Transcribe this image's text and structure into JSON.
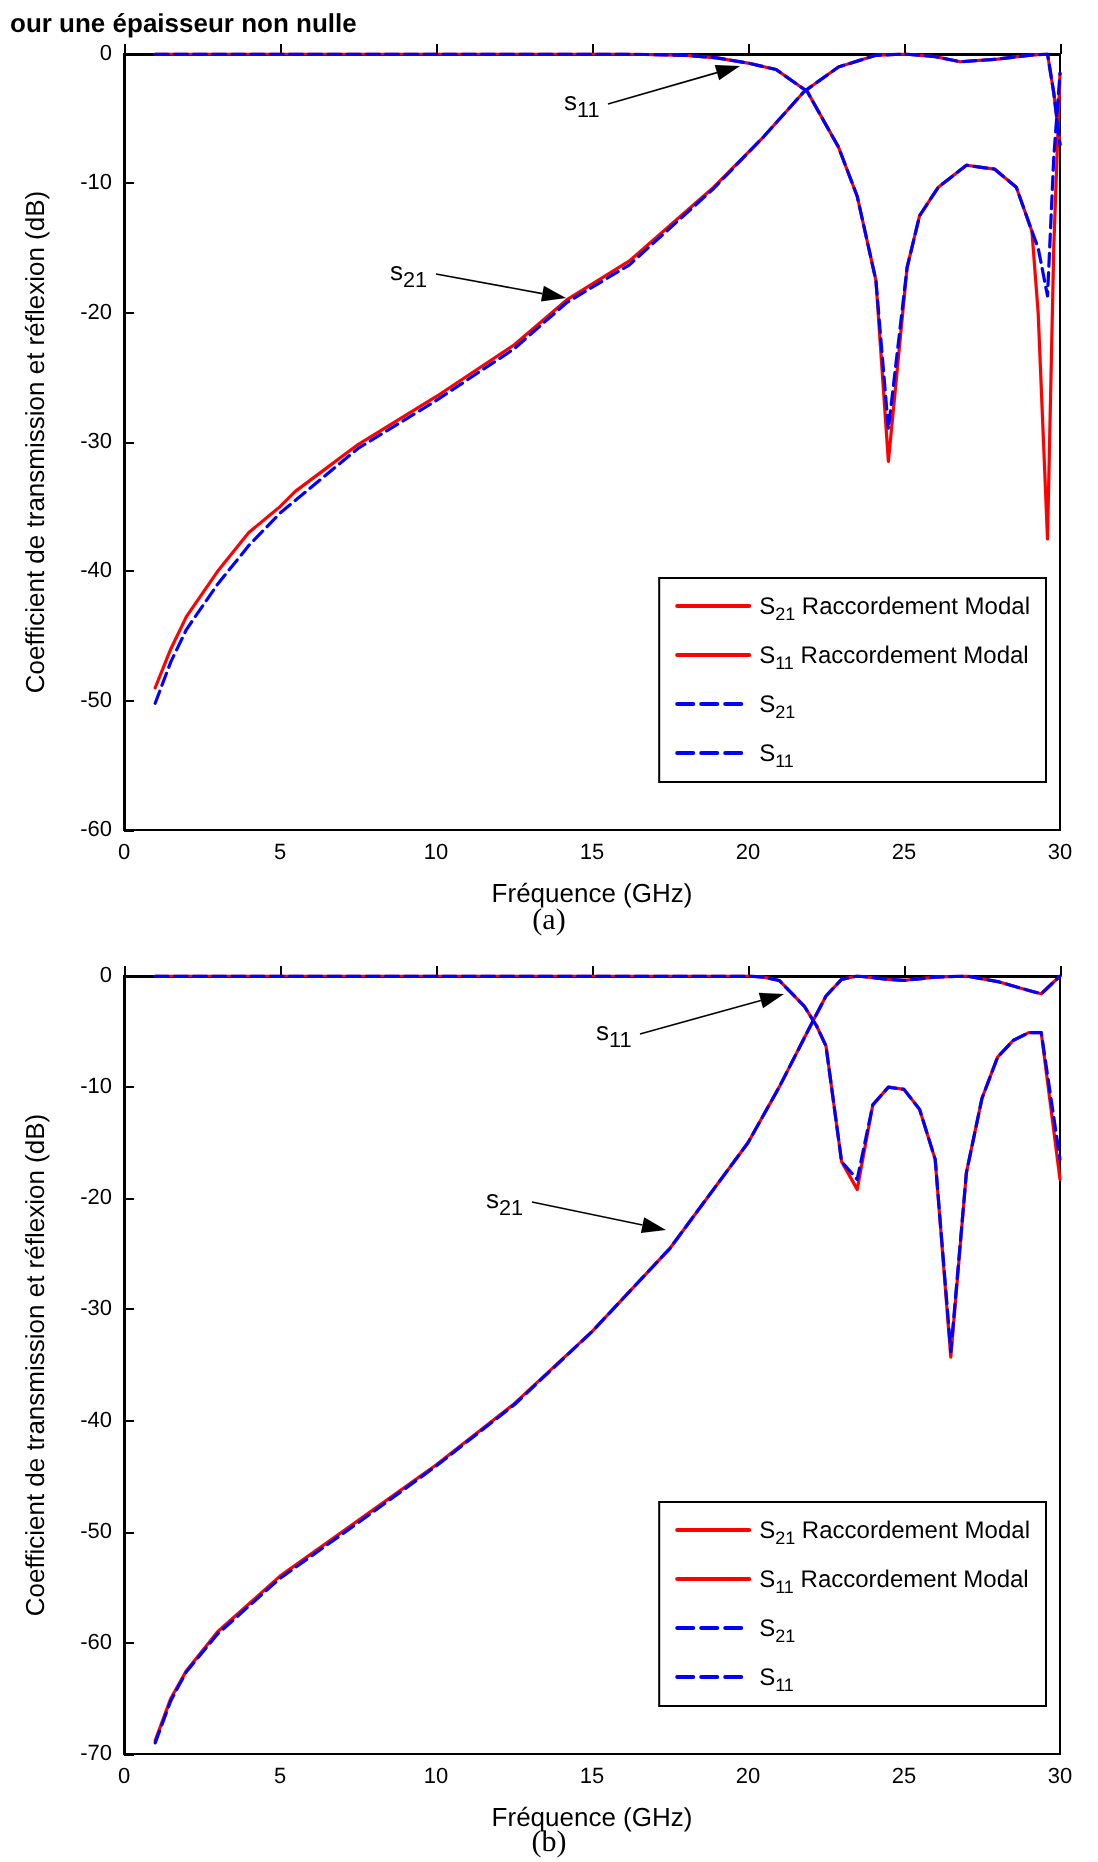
{
  "chart_data": [
    {
      "type": "line",
      "title": "our une épaisseur non nulle",
      "xlabel": "Fréquence (GHz)",
      "ylabel": "Coefficient de transmission et réflexion (dB)",
      "xlim": [
        0,
        30
      ],
      "xticks": [
        0,
        5,
        10,
        15,
        20,
        25,
        30
      ],
      "ylim": [
        -60,
        0
      ],
      "yticks": [
        -60,
        -50,
        -40,
        -30,
        -20,
        -10,
        0
      ],
      "grid": false,
      "legend": "bottom right",
      "marker": "none",
      "annotations": [
        "s$_{11}$",
        "s$_{21}$",
        "(a)"
      ],
      "series": [
        {
          "name": "S$_{21}$ Raccordement Modal",
          "color": "#ff0000",
          "line_style": "solid",
          "x": [
            1,
            1.5,
            2,
            3,
            4,
            5,
            5.5,
            6.5,
            7.5,
            10,
            12.5,
            14.2,
            16.2,
            18.9,
            20.5,
            21.8,
            22.9,
            24.1,
            25,
            26,
            26.8,
            28,
            29,
            29.6,
            29.8,
            30
          ],
          "values": [
            -49,
            -46,
            -43.5,
            -40,
            -37,
            -35,
            -33.8,
            -32,
            -30.2,
            -26.5,
            -22.5,
            -19,
            -16,
            -10.3,
            -6.4,
            -2.9,
            -1,
            -0.1,
            0,
            -0.2,
            -0.6,
            -0.4,
            -0.1,
            0,
            -3,
            -7
          ]
        },
        {
          "name": "S$_{11}$ Raccordement Modal",
          "color": "#ff0000",
          "line_style": "solid",
          "x": [
            1,
            10,
            16,
            18,
            19,
            20,
            20.9,
            21.9,
            22.9,
            23.5,
            24.1,
            24.5,
            25.1,
            25.5,
            26.1,
            27,
            27.9,
            28.6,
            29.1,
            29.3,
            29.6,
            29.8,
            30
          ],
          "values": [
            0,
            0,
            0,
            -0.1,
            -0.3,
            -0.7,
            -1.2,
            -2.9,
            -7.2,
            -11,
            -17.5,
            -31.5,
            -16.5,
            -12.5,
            -10.3,
            -8.6,
            -8.9,
            -10.3,
            -13.7,
            -20,
            -37.5,
            -15,
            -1.5
          ]
        },
        {
          "name": "S$_{21}$",
          "color": "#0000ff",
          "line_style": "dashed",
          "x": [
            1,
            1.5,
            2,
            3,
            4,
            5,
            6,
            7.5,
            10,
            12.5,
            14.2,
            16.2,
            18.9,
            20.5,
            21.8,
            22.9,
            24.1,
            25,
            26,
            26.8,
            28,
            29,
            29.6,
            29.8,
            30
          ],
          "values": [
            -50.2,
            -47,
            -44.5,
            -41,
            -38,
            -35.5,
            -33.5,
            -30.5,
            -26.8,
            -22.8,
            -19.2,
            -16.3,
            -10.4,
            -6.4,
            -2.9,
            -1,
            -0.1,
            0,
            -0.2,
            -0.6,
            -0.4,
            -0.1,
            0,
            -3,
            -7
          ]
        },
        {
          "name": "S$_{11}$",
          "color": "#0000ff",
          "line_style": "dashed",
          "x": [
            1,
            10,
            16,
            18,
            19,
            20,
            20.9,
            21.9,
            22.9,
            23.5,
            24.1,
            24.5,
            25.1,
            25.5,
            26.1,
            27,
            27.9,
            28.6,
            29.1,
            29.3,
            29.6,
            29.8,
            30
          ],
          "values": [
            0,
            0,
            0,
            -0.1,
            -0.3,
            -0.7,
            -1.2,
            -2.9,
            -7.2,
            -11,
            -17.5,
            -29,
            -16.5,
            -12.5,
            -10.3,
            -8.6,
            -8.9,
            -10.3,
            -13.7,
            -15,
            -18.7,
            -8,
            -1.5
          ]
        }
      ]
    },
    {
      "type": "line",
      "xlabel": "Fréquence (GHz)",
      "ylabel": "Coefficient de transmission et réflexion (dB)",
      "xlim": [
        0,
        30
      ],
      "xticks": [
        0,
        5,
        10,
        15,
        20,
        25,
        30
      ],
      "ylim": [
        -70,
        0
      ],
      "yticks": [
        -70,
        -60,
        -50,
        -40,
        -30,
        -20,
        -10,
        0
      ],
      "grid": false,
      "legend": "bottom right",
      "marker": "none",
      "annotations": [
        "s$_{11}$",
        "s$_{21}$",
        "(b)"
      ],
      "series": [
        {
          "name": "S$_{21}$ Raccordement Modal",
          "color": "#ff0000",
          "line_style": "solid",
          "x": [
            1,
            1.5,
            2,
            3,
            4,
            5,
            7.5,
            10,
            12.5,
            15,
            17.5,
            20,
            21,
            22,
            22.5,
            23,
            23.5,
            24.5,
            25,
            26,
            27,
            28,
            29,
            29.4,
            30
          ],
          "values": [
            -68.8,
            -65,
            -62.5,
            -59,
            -56.5,
            -54,
            -49,
            -44,
            -38.5,
            -32,
            -24.5,
            -15,
            -10,
            -4.5,
            -1.8,
            -0.3,
            0,
            -0.3,
            -0.4,
            -0.1,
            0,
            -0.5,
            -1.3,
            -1.6,
            0
          ]
        },
        {
          "name": "S$_{11}$ Raccordement Modal",
          "color": "#ff0000",
          "line_style": "solid",
          "x": [
            1,
            10,
            20,
            20.5,
            21,
            21.8,
            22.2,
            22.5,
            23,
            23.5,
            24,
            24.5,
            25,
            25.5,
            26,
            26.5,
            27,
            27.5,
            28,
            28.5,
            29,
            29.4,
            30
          ],
          "values": [
            0,
            0,
            0,
            -0.1,
            -0.4,
            -2.7,
            -4.5,
            -6.3,
            -16.7,
            -19.2,
            -11.6,
            -10,
            -10.2,
            -12,
            -16.5,
            -34.3,
            -17.7,
            -11,
            -7.3,
            -5.8,
            -5.1,
            -5.1,
            -18.3
          ]
        },
        {
          "name": "S$_{21}$",
          "color": "#0000ff",
          "line_style": "dashed",
          "x": [
            1,
            1.5,
            2,
            3,
            4,
            5,
            7.5,
            10,
            12.5,
            15,
            17.5,
            20,
            21,
            22,
            22.5,
            23,
            23.5,
            24.5,
            25,
            26,
            27,
            28,
            29,
            29.4,
            30
          ],
          "values": [
            -69,
            -65.2,
            -62.6,
            -59.2,
            -56.7,
            -54.2,
            -49.2,
            -44.1,
            -38.6,
            -32,
            -24.5,
            -15,
            -10,
            -4.5,
            -1.8,
            -0.3,
            0,
            -0.3,
            -0.4,
            -0.1,
            0,
            -0.5,
            -1.3,
            -1.6,
            0
          ]
        },
        {
          "name": "S$_{11}$",
          "color": "#0000ff",
          "line_style": "dashed",
          "x": [
            1,
            10,
            20,
            20.5,
            21,
            21.8,
            22.2,
            22.5,
            23,
            23.5,
            24,
            24.5,
            25,
            25.5,
            26,
            26.5,
            27,
            27.5,
            28,
            28.5,
            29,
            29.4,
            30
          ],
          "values": [
            0,
            0,
            0,
            -0.1,
            -0.4,
            -2.7,
            -4.5,
            -6.3,
            -16.7,
            -18.3,
            -11.6,
            -10,
            -10.2,
            -12,
            -16.5,
            -33.8,
            -17.7,
            -11,
            -7.3,
            -5.8,
            -5.1,
            -5.1,
            -16.5
          ]
        }
      ]
    }
  ]
}
